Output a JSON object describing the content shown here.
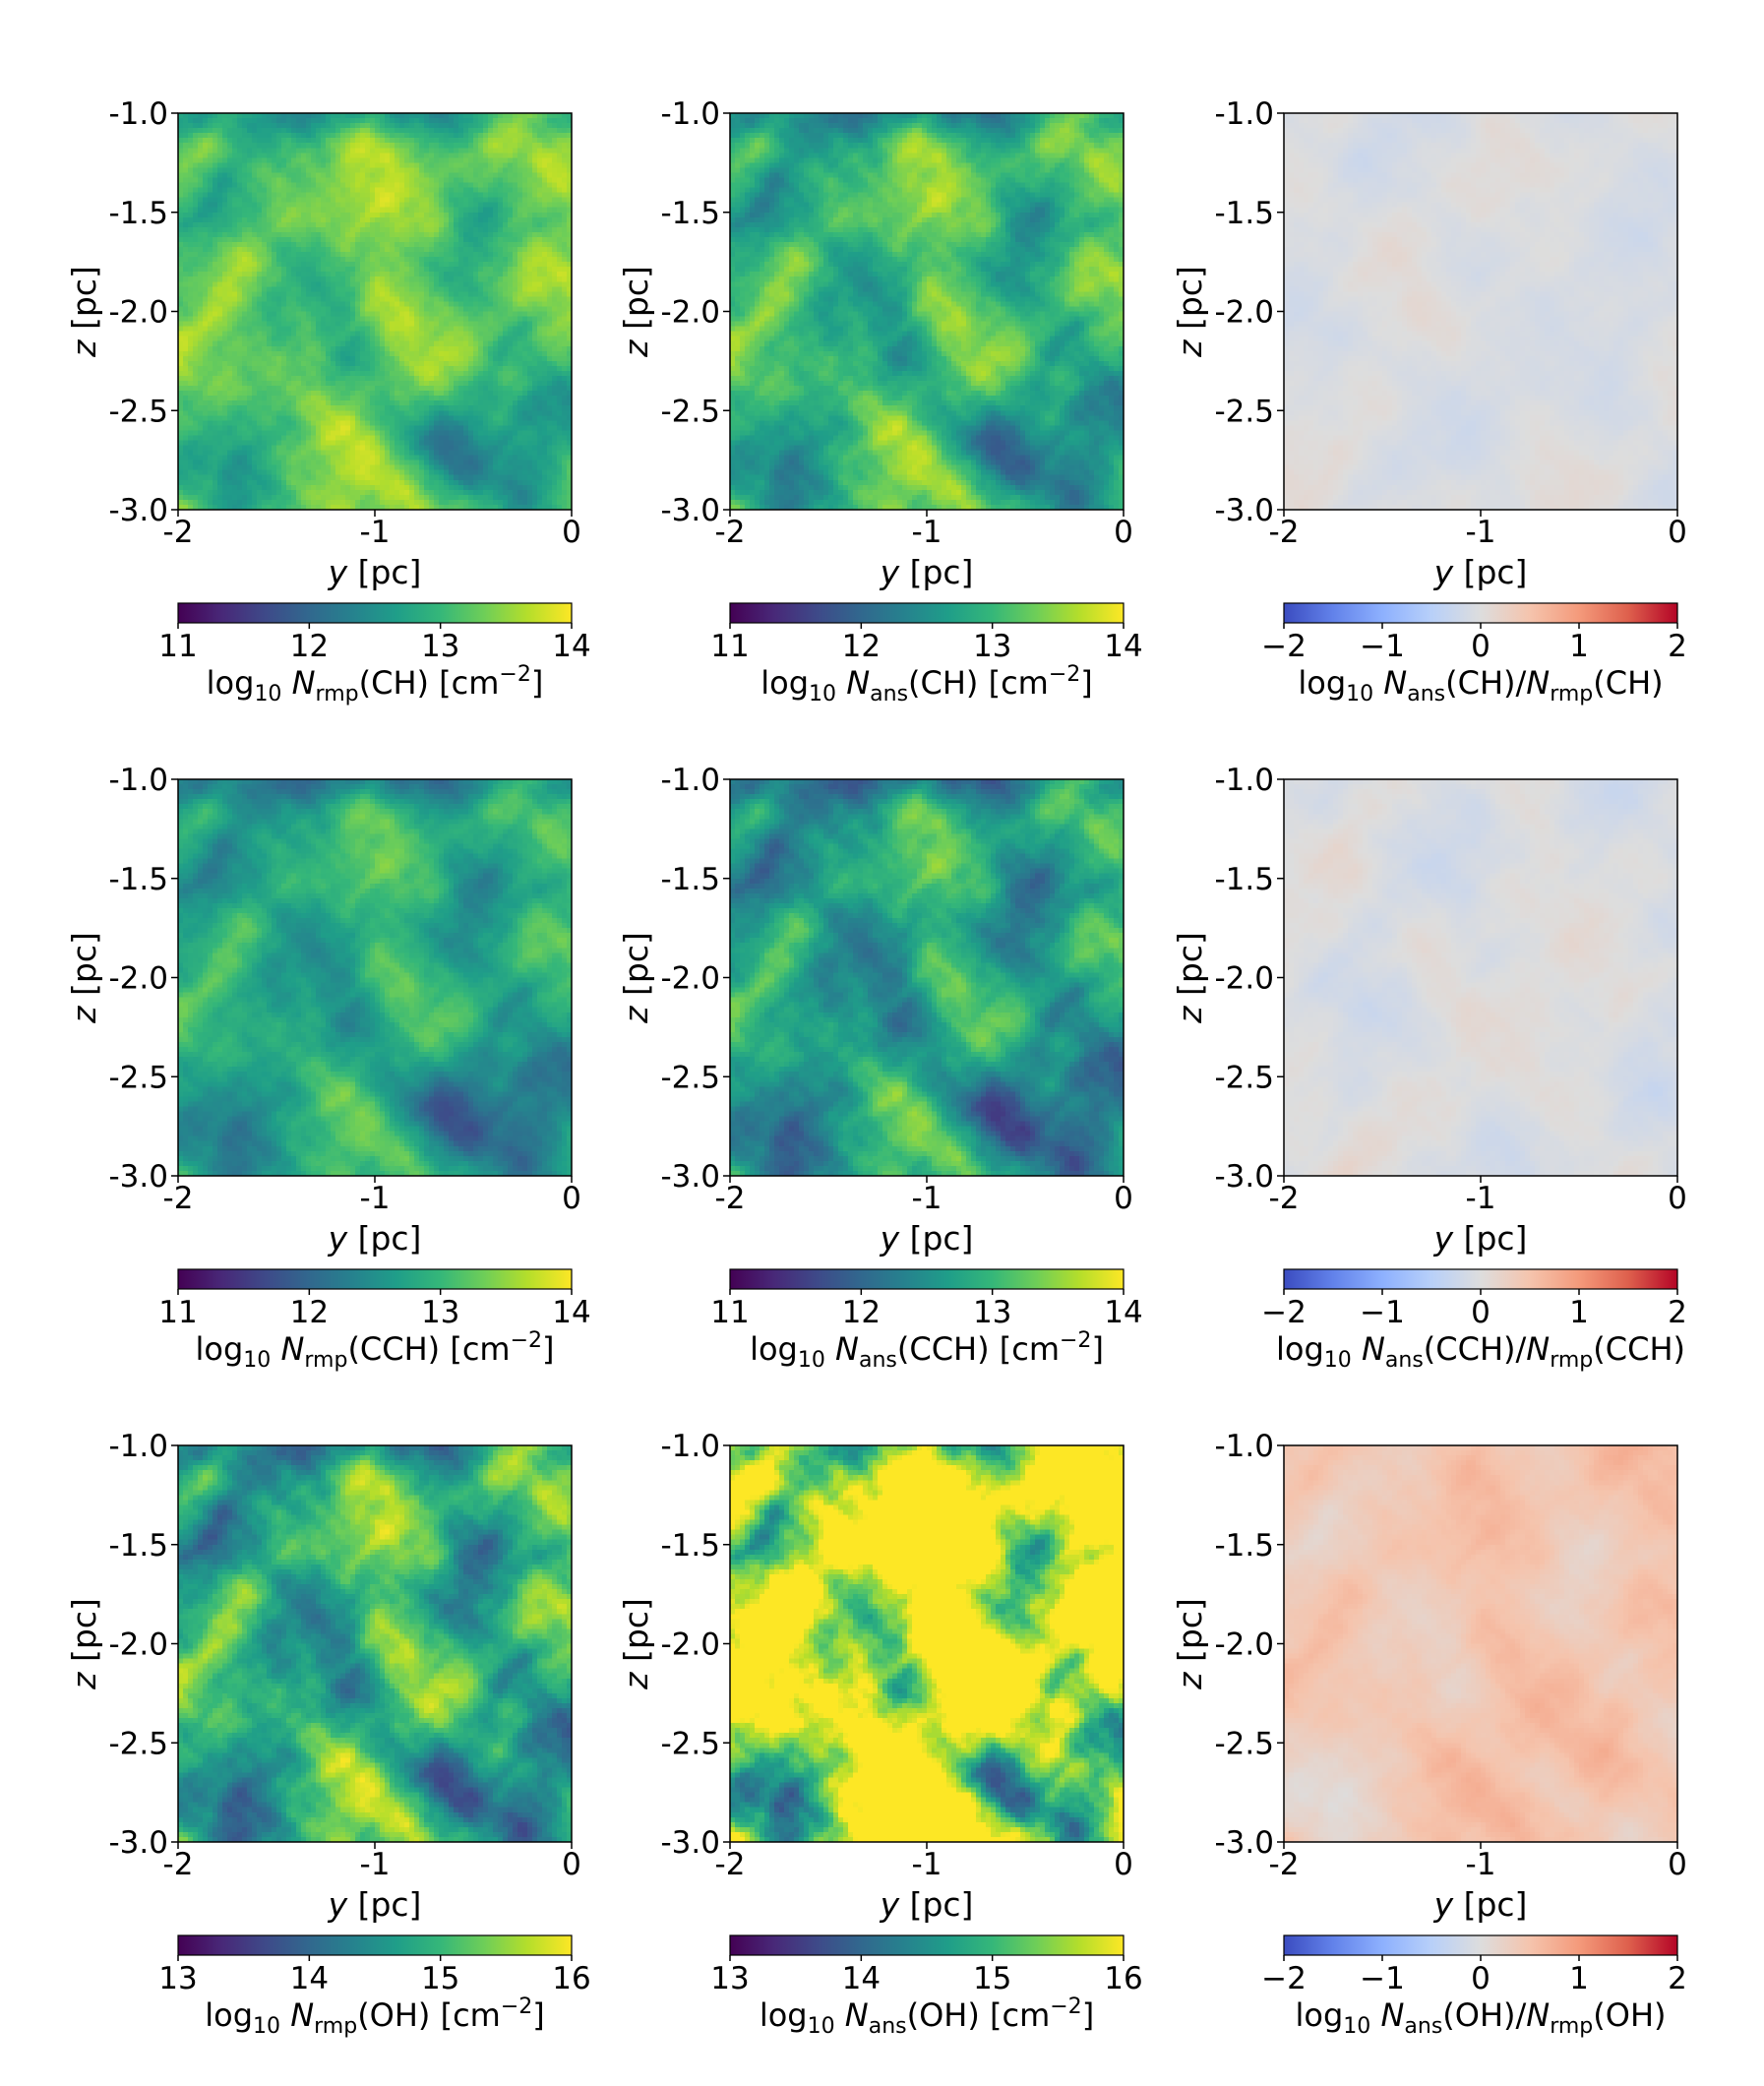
{
  "chart_data": [
    {
      "type": "heatmap",
      "row": 0,
      "col": 0,
      "field": "log10 N_rmp(CH)",
      "style": "rmp",
      "colormap": "viridis",
      "xlabel_var": "y",
      "xlabel_unit": " [pc]",
      "ylabel_var": "z",
      "ylabel_unit": " [pc]",
      "xlim": [
        -2,
        0
      ],
      "ylim": [
        -3.0,
        -1.0
      ],
      "xticks": [
        "-2",
        "-1",
        "0"
      ],
      "yticks": [
        "-1.0",
        "-1.5",
        "-2.0",
        "-2.5",
        "-3.0"
      ],
      "clim": [
        11,
        14
      ],
      "cticks": [
        "11",
        "12",
        "13",
        "14"
      ],
      "base": 13.3,
      "contrast": 0.45,
      "seed": 3,
      "cb_label": {
        "pre": "log",
        "sub10": "10",
        "N": "N",
        "sub": "rmp",
        "species": "(CH)",
        "unit": " [cm",
        "exp": "−2",
        "close": "]"
      }
    },
    {
      "type": "heatmap",
      "row": 0,
      "col": 1,
      "field": "log10 N_ans(CH)",
      "style": "ans",
      "colormap": "viridis",
      "xlabel_var": "y",
      "xlabel_unit": " [pc]",
      "ylabel_var": "z",
      "ylabel_unit": " [pc]",
      "xlim": [
        -2,
        0
      ],
      "ylim": [
        -3.0,
        -1.0
      ],
      "xticks": [
        "-2",
        "-1",
        "0"
      ],
      "yticks": [
        "-1.0",
        "-1.5",
        "-2.0",
        "-2.5",
        "-3.0"
      ],
      "clim": [
        11,
        14
      ],
      "cticks": [
        "11",
        "12",
        "13",
        "14"
      ],
      "base": 13.1,
      "contrast": 0.55,
      "seed": 3,
      "cb_label": {
        "pre": "log",
        "sub10": "10",
        "N": "N",
        "sub": "ans",
        "species": "(CH)",
        "unit": " [cm",
        "exp": "−2",
        "close": "]"
      }
    },
    {
      "type": "heatmap",
      "row": 0,
      "col": 2,
      "field": "log10 N_ans(CH)/N_rmp(CH)",
      "style": "ratio",
      "colormap": "coolwarm",
      "xlabel_var": "y",
      "xlabel_unit": " [pc]",
      "ylabel_var": "z",
      "ylabel_unit": " [pc]",
      "xlim": [
        -2,
        0
      ],
      "ylim": [
        -3.0,
        -1.0
      ],
      "xticks": [
        "-2",
        "-1",
        "0"
      ],
      "yticks": [
        "-1.0",
        "-1.5",
        "-2.0",
        "-2.5",
        "-3.0"
      ],
      "clim": [
        -2,
        2
      ],
      "cticks": [
        "−2",
        "−1",
        "0",
        "1",
        "2"
      ],
      "base": -0.05,
      "contrast": 0.12,
      "seed": 11,
      "cb_label": {
        "pre": "log",
        "sub10": "10",
        "N": "N",
        "sub": "ans",
        "species": "(CH)/",
        "N2": "N",
        "sub2": "rmp",
        "species2": "(CH)"
      }
    },
    {
      "type": "heatmap",
      "row": 1,
      "col": 0,
      "field": "log10 N_rmp(CCH)",
      "style": "rmp",
      "colormap": "viridis",
      "xlabel_var": "y",
      "xlabel_unit": " [pc]",
      "ylabel_var": "z",
      "ylabel_unit": " [pc]",
      "xlim": [
        -2,
        0
      ],
      "ylim": [
        -3.0,
        -1.0
      ],
      "xticks": [
        "-2",
        "-1",
        "0"
      ],
      "yticks": [
        "-1.0",
        "-1.5",
        "-2.0",
        "-2.5",
        "-3.0"
      ],
      "clim": [
        11,
        14
      ],
      "cticks": [
        "11",
        "12",
        "13",
        "14"
      ],
      "base": 12.9,
      "contrast": 0.45,
      "seed": 3,
      "cb_label": {
        "pre": "log",
        "sub10": "10",
        "N": "N",
        "sub": "rmp",
        "species": "(CCH)",
        "unit": " [cm",
        "exp": "−2",
        "close": "]"
      }
    },
    {
      "type": "heatmap",
      "row": 1,
      "col": 1,
      "field": "log10 N_ans(CCH)",
      "style": "ans",
      "colormap": "viridis",
      "xlabel_var": "y",
      "xlabel_unit": " [pc]",
      "ylabel_var": "z",
      "ylabel_unit": " [pc]",
      "xlim": [
        -2,
        0
      ],
      "ylim": [
        -3.0,
        -1.0
      ],
      "xticks": [
        "-2",
        "-1",
        "0"
      ],
      "yticks": [
        "-1.0",
        "-1.5",
        "-2.0",
        "-2.5",
        "-3.0"
      ],
      "clim": [
        11,
        14
      ],
      "cticks": [
        "11",
        "12",
        "13",
        "14"
      ],
      "base": 12.8,
      "contrast": 0.6,
      "seed": 3,
      "cb_label": {
        "pre": "log",
        "sub10": "10",
        "N": "N",
        "sub": "ans",
        "species": "(CCH)",
        "unit": " [cm",
        "exp": "−2",
        "close": "]"
      }
    },
    {
      "type": "heatmap",
      "row": 1,
      "col": 2,
      "field": "log10 N_ans(CCH)/N_rmp(CCH)",
      "style": "ratio",
      "colormap": "coolwarm",
      "xlabel_var": "y",
      "xlabel_unit": " [pc]",
      "ylabel_var": "z",
      "ylabel_unit": " [pc]",
      "xlim": [
        -2,
        0
      ],
      "ylim": [
        -3.0,
        -1.0
      ],
      "xticks": [
        "-2",
        "-1",
        "0"
      ],
      "yticks": [
        "-1.0",
        "-1.5",
        "-2.0",
        "-2.5",
        "-3.0"
      ],
      "clim": [
        -2,
        2
      ],
      "cticks": [
        "−2",
        "−1",
        "0",
        "1",
        "2"
      ],
      "base": -0.05,
      "contrast": 0.14,
      "seed": 17,
      "cb_label": {
        "pre": "log",
        "sub10": "10",
        "N": "N",
        "sub": "ans",
        "species": "(CCH)/",
        "N2": "N",
        "sub2": "rmp",
        "species2": "(CCH)"
      }
    },
    {
      "type": "heatmap",
      "row": 2,
      "col": 0,
      "field": "log10 N_rmp(OH)",
      "style": "rmp",
      "colormap": "viridis",
      "xlabel_var": "y",
      "xlabel_unit": " [pc]",
      "ylabel_var": "z",
      "ylabel_unit": " [pc]",
      "xlim": [
        -2,
        0
      ],
      "ylim": [
        -3.0,
        -1.0
      ],
      "xticks": [
        "-2",
        "-1",
        "0"
      ],
      "yticks": [
        "-1.0",
        "-1.5",
        "-2.0",
        "-2.5",
        "-3.0"
      ],
      "clim": [
        13,
        16
      ],
      "cticks": [
        "13",
        "14",
        "15",
        "16"
      ],
      "base": 15.0,
      "contrast": 0.75,
      "seed": 3,
      "cb_label": {
        "pre": "log",
        "sub10": "10",
        "N": "N",
        "sub": "rmp",
        "species": "(OH)",
        "unit": " [cm",
        "exp": "−2",
        "close": "]"
      }
    },
    {
      "type": "heatmap",
      "row": 2,
      "col": 1,
      "field": "log10 N_ans(OH)",
      "style": "ans_oh",
      "colormap": "viridis",
      "xlabel_var": "y",
      "xlabel_unit": " [pc]",
      "ylabel_var": "z",
      "ylabel_unit": " [pc]",
      "xlim": [
        -2,
        0
      ],
      "ylim": [
        -3.0,
        -1.0
      ],
      "xticks": [
        "-2",
        "-1",
        "0"
      ],
      "yticks": [
        "-1.0",
        "-1.5",
        "-2.0",
        "-2.5",
        "-3.0"
      ],
      "clim": [
        13,
        16
      ],
      "cticks": [
        "13",
        "14",
        "15",
        "16"
      ],
      "base": 15.3,
      "contrast": 1.2,
      "seed": 3,
      "cb_label": {
        "pre": "log",
        "sub10": "10",
        "N": "N",
        "sub": "ans",
        "species": "(OH)",
        "unit": " [cm",
        "exp": "−2",
        "close": "]"
      }
    },
    {
      "type": "heatmap",
      "row": 2,
      "col": 2,
      "field": "log10 N_ans(OH)/N_rmp(OH)",
      "style": "ratio_oh",
      "colormap": "coolwarm",
      "xlabel_var": "y",
      "xlabel_unit": " [pc]",
      "ylabel_var": "z",
      "ylabel_unit": " [pc]",
      "xlim": [
        -2,
        0
      ],
      "ylim": [
        -3.0,
        -1.0
      ],
      "xticks": [
        "-2",
        "-1",
        "0"
      ],
      "yticks": [
        "-1.0",
        "-1.5",
        "-2.0",
        "-2.5",
        "-3.0"
      ],
      "clim": [
        -2,
        2
      ],
      "cticks": [
        "−2",
        "−1",
        "0",
        "1",
        "2"
      ],
      "base": 0.45,
      "contrast": 0.2,
      "seed": 3,
      "cb_label": {
        "pre": "log",
        "sub10": "10",
        "N": "N",
        "sub": "ans",
        "species": "(OH)/",
        "N2": "N",
        "sub2": "rmp",
        "species2": "(OH)"
      }
    }
  ]
}
